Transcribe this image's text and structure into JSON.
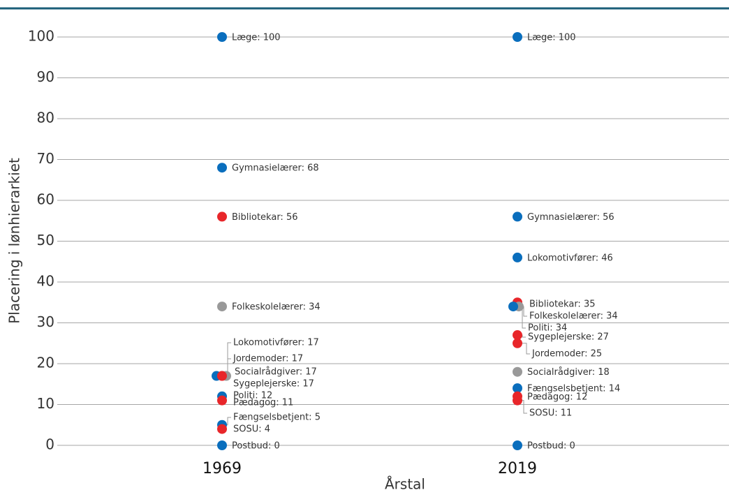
{
  "chart_data": {
    "type": "dot",
    "y_label": "Placering i lønhierarkiet",
    "x_label": "Årstal",
    "ylim": [
      0,
      100
    ],
    "yticks": [
      0,
      10,
      20,
      30,
      40,
      50,
      60,
      70,
      80,
      90,
      100
    ],
    "grid": true,
    "groups": [
      {
        "category": "1969",
        "points": [
          {
            "value": 100,
            "label": "Læge: 100",
            "color": "#0a6ebd"
          },
          {
            "value": 68,
            "label": "Gymnasielærer: 68",
            "color": "#0a6ebd"
          },
          {
            "value": 56,
            "label": "Bibliotekar: 56",
            "color": "#e8262a"
          },
          {
            "value": 34,
            "label": "Folkeskolelærer: 34",
            "color": "#999999"
          },
          {
            "value": 17,
            "label": "Lokomotivfører: 17",
            "color": "#0a6ebd"
          },
          {
            "value": 17,
            "label": "Jordemoder: 17",
            "color": "#e8262a"
          },
          {
            "value": 17,
            "label": "Socialrådgiver: 17",
            "color": "#999999"
          },
          {
            "value": 17,
            "label": "Sygeplejerske: 17",
            "color": "#e8262a"
          },
          {
            "value": 12,
            "label": "Politi: 12",
            "color": "#0a6ebd"
          },
          {
            "value": 11,
            "label": "Pædagog: 11",
            "color": "#e8262a"
          },
          {
            "value": 5,
            "label": "Fængselsbetjent: 5",
            "color": "#0a6ebd"
          },
          {
            "value": 4,
            "label": "SOSU: 4",
            "color": "#e8262a"
          },
          {
            "value": 0,
            "label": "Postbud: 0",
            "color": "#0a6ebd"
          }
        ]
      },
      {
        "category": "2019",
        "points": [
          {
            "value": 100,
            "label": "Læge: 100",
            "color": "#0a6ebd"
          },
          {
            "value": 56,
            "label": "Gymnasielærer: 56",
            "color": "#0a6ebd"
          },
          {
            "value": 46,
            "label": "Lokomotivfører: 46",
            "color": "#0a6ebd"
          },
          {
            "value": 35,
            "label": "Bibliotekar: 35",
            "color": "#e8262a"
          },
          {
            "value": 34,
            "label": "Folkeskolelærer: 34",
            "color": "#999999"
          },
          {
            "value": 34,
            "label": "Politi: 34",
            "color": "#0a6ebd"
          },
          {
            "value": 27,
            "label": "Sygeplejerske: 27",
            "color": "#e8262a"
          },
          {
            "value": 25,
            "label": "Jordemoder: 25",
            "color": "#e8262a"
          },
          {
            "value": 18,
            "label": "Socialrådgiver: 18",
            "color": "#999999"
          },
          {
            "value": 14,
            "label": "Fængselsbetjent: 14",
            "color": "#0a6ebd"
          },
          {
            "value": 12,
            "label": "Pædagog: 12",
            "color": "#e8262a"
          },
          {
            "value": 11,
            "label": "SOSU: 11",
            "color": "#e8262a"
          },
          {
            "value": 0,
            "label": "Postbud: 0",
            "color": "#0a6ebd"
          }
        ]
      }
    ]
  }
}
